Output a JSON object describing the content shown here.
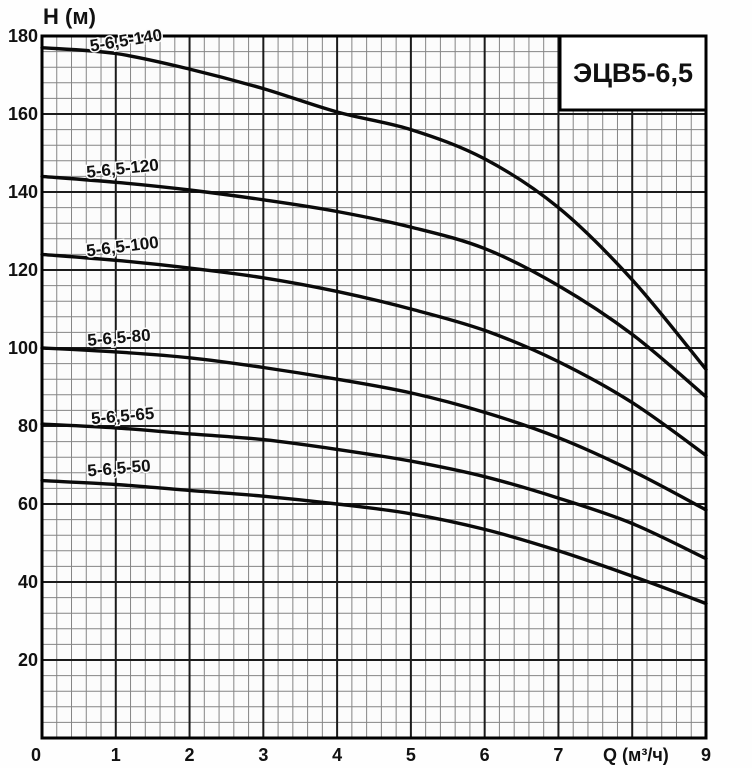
{
  "header": {
    "y_axis_title": "H (м)"
  },
  "model_box": {
    "label": "ЭЦВ5-6,5"
  },
  "colors": {
    "curve": "#0a0a0a",
    "grid_minor": "#858585",
    "grid_major": "#1b1b1b",
    "border": "#000000",
    "text": "#111111",
    "plot_bg": "#fcfcfc",
    "box_bg": "#ffffff"
  },
  "chart_data": {
    "type": "line",
    "title": "ЭЦВ5-6,5",
    "xlabel": "Q (м³/ч)",
    "ylabel": "H (м)",
    "xlim": [
      0,
      9
    ],
    "ylim": [
      0,
      180
    ],
    "grid": true,
    "x_minor_per_major": 5,
    "y_minor_per_major": 5,
    "x_major_step": 1,
    "y_major_step": 20,
    "x": [
      0,
      1,
      2,
      3,
      4,
      5,
      6,
      7,
      8,
      9
    ],
    "y_ticks": [
      180,
      160,
      140,
      120,
      100,
      80,
      60,
      40,
      20
    ],
    "x_ticks": [
      {
        "q": 0,
        "label": "0"
      },
      {
        "q": 1,
        "label": "1"
      },
      {
        "q": 2,
        "label": "2"
      },
      {
        "q": 3,
        "label": "3"
      },
      {
        "q": 4,
        "label": "4"
      },
      {
        "q": 5,
        "label": "5"
      },
      {
        "q": 6,
        "label": "6"
      },
      {
        "q": 7,
        "label": "7"
      },
      {
        "q": 8.05,
        "label": "Q (м³/ч)"
      },
      {
        "q": 9,
        "label": "9"
      }
    ],
    "series": [
      {
        "name": "5-6,5-140",
        "values": [
          177,
          175.5,
          171.5,
          166.5,
          160.5,
          156,
          148.5,
          136,
          117.5,
          94.5
        ],
        "label": {
          "q": 1.15,
          "dy": -10,
          "rot": -9
        }
      },
      {
        "name": "5-6,5-120",
        "values": [
          144,
          142.5,
          140.5,
          138,
          135,
          131,
          125.5,
          116,
          103.5,
          87.5
        ],
        "label": {
          "q": 1.1,
          "dy": -9,
          "rot": -6
        }
      },
      {
        "name": "5-6,5-100",
        "values": [
          124,
          122.5,
          120.5,
          118,
          114.5,
          110,
          104.5,
          96.5,
          86,
          72.5
        ],
        "label": {
          "q": 1.1,
          "dy": -9,
          "rot": -7
        }
      },
      {
        "name": "5-6,5-80",
        "values": [
          100,
          99,
          97.5,
          95,
          92,
          88.5,
          83.5,
          77,
          68.5,
          58.5
        ],
        "label": {
          "q": 1.05,
          "dy": -9,
          "rot": -5
        }
      },
      {
        "name": "5-6,5-65",
        "values": [
          80.5,
          79.5,
          78,
          76.5,
          74,
          71,
          67,
          61.5,
          55,
          46
        ],
        "label": {
          "q": 1.1,
          "dy": -7,
          "rot": -5
        }
      },
      {
        "name": "5-6,5-50",
        "values": [
          66,
          65,
          63.5,
          62,
          60,
          57.5,
          53.5,
          48,
          41.5,
          34.5
        ],
        "label": {
          "q": 1.05,
          "dy": -11,
          "rot": -5
        }
      }
    ]
  }
}
